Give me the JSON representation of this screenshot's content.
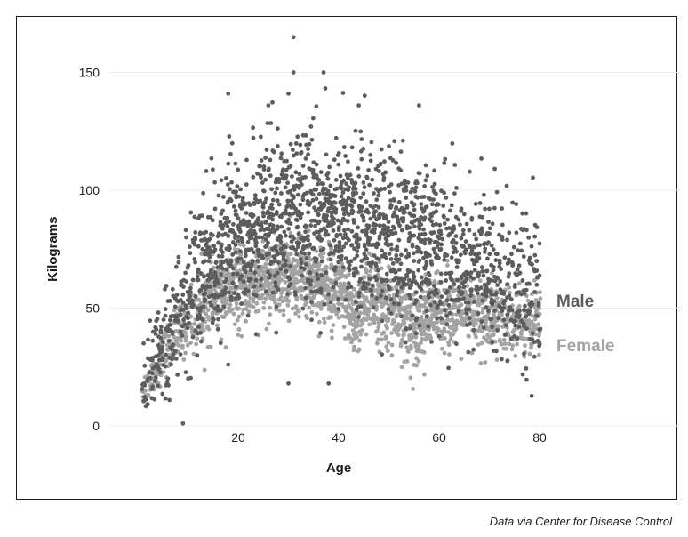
{
  "chart_data": {
    "type": "scatter",
    "title": "",
    "xlabel": "Age",
    "ylabel": "Kilograms",
    "xlim": [
      0,
      80
    ],
    "ylim": [
      0,
      165
    ],
    "x_ticks": [
      20,
      40,
      60,
      80
    ],
    "y_ticks": [
      0,
      50,
      100,
      150
    ],
    "grid": "horizontal",
    "legend": "direct labels on right side",
    "series": [
      {
        "name": "Male",
        "color": "#5c5c5c",
        "mean_by_age": [
          [
            0,
            14
          ],
          [
            2,
            20
          ],
          [
            5,
            35
          ],
          [
            10,
            55
          ],
          [
            15,
            72
          ],
          [
            20,
            82
          ],
          [
            25,
            86
          ],
          [
            30,
            88
          ],
          [
            35,
            88
          ],
          [
            40,
            86
          ],
          [
            45,
            84
          ],
          [
            50,
            82
          ],
          [
            55,
            78
          ],
          [
            60,
            75
          ],
          [
            65,
            70
          ],
          [
            70,
            66
          ],
          [
            75,
            62
          ],
          [
            80,
            58
          ]
        ],
        "sd": 17,
        "outliers": [
          [
            31,
            165
          ],
          [
            31,
            150
          ],
          [
            37,
            150
          ],
          [
            18,
            141
          ],
          [
            30,
            141
          ],
          [
            26,
            136
          ],
          [
            44,
            136
          ],
          [
            56,
            136
          ],
          [
            18,
            26
          ],
          [
            30,
            18
          ],
          [
            38,
            18
          ],
          [
            9,
            1
          ]
        ]
      },
      {
        "name": "Female",
        "color": "#a3a3a3",
        "mean_by_age": [
          [
            0,
            13
          ],
          [
            2,
            18
          ],
          [
            5,
            30
          ],
          [
            10,
            45
          ],
          [
            15,
            55
          ],
          [
            20,
            58
          ],
          [
            25,
            62
          ],
          [
            30,
            64
          ],
          [
            35,
            62
          ],
          [
            40,
            57
          ],
          [
            43,
            45
          ],
          [
            46,
            55
          ],
          [
            50,
            50
          ],
          [
            55,
            42
          ],
          [
            60,
            50
          ],
          [
            65,
            48
          ],
          [
            70,
            45
          ],
          [
            75,
            44
          ],
          [
            80,
            42
          ]
        ],
        "sd": 8,
        "outliers": []
      }
    ]
  },
  "source": "Data via Center for Disease Control"
}
